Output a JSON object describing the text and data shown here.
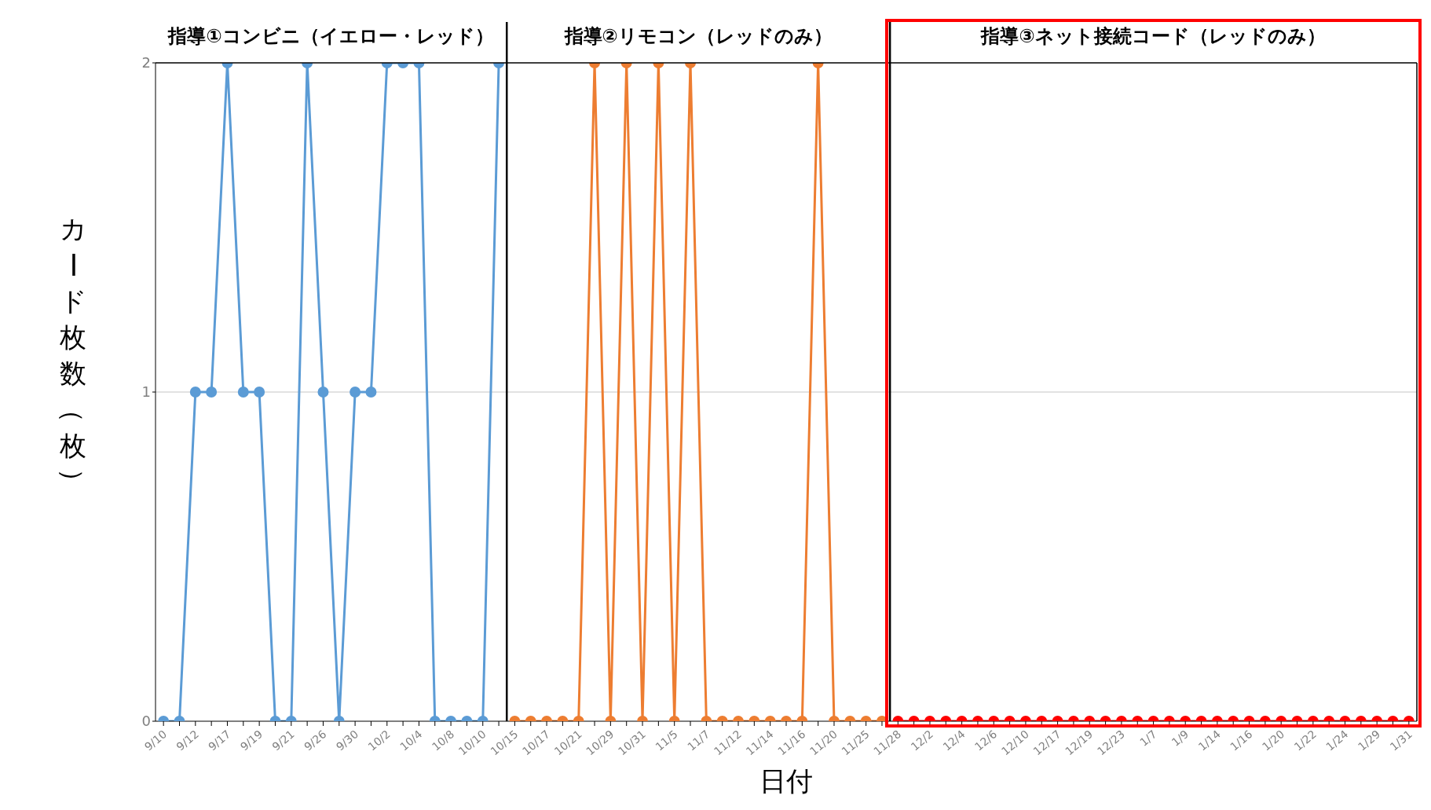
{
  "chart_data": {
    "type": "line",
    "xlabel": "日付",
    "ylabel": "カード枚数（枚）",
    "annotations": [
      "指導①コンビニ（イエロー・レッド）",
      "指導②リモコン（レッドのみ）",
      "指導③ネット接続コード（レッドのみ）"
    ],
    "categories": [
      "9/10",
      null,
      "9/12",
      null,
      "9/17",
      null,
      "9/19",
      null,
      "9/21",
      null,
      "9/26",
      null,
      "9/30",
      null,
      "10/2",
      null,
      "10/4",
      null,
      "10/8",
      null,
      "10/10",
      null,
      "10/15",
      null,
      "10/17",
      null,
      "10/21",
      null,
      "10/29",
      null,
      "10/31",
      null,
      "11/5",
      null,
      "11/7",
      null,
      "11/12",
      null,
      "11/14",
      null,
      "11/16",
      null,
      "11/20",
      null,
      "11/25",
      null,
      "11/28",
      null,
      "12/2",
      null,
      "12/4",
      null,
      "12/6",
      null,
      "12/10",
      null,
      "12/17",
      null,
      "12/19",
      null,
      "12/23",
      null,
      "1/7",
      null,
      "1/9",
      null,
      "1/14",
      null,
      "1/16",
      null,
      "1/20",
      null,
      "1/22",
      null,
      "1/24",
      null,
      "1/29",
      null,
      "1/31"
    ],
    "series": [
      {
        "color": "#5b9bd5",
        "values": [
          0,
          0,
          1,
          1,
          2,
          1,
          1,
          0,
          0,
          2,
          1,
          0,
          1,
          1,
          2,
          2,
          2,
          0,
          0,
          0,
          0,
          2,
          null,
          null,
          null,
          null,
          null,
          null,
          null,
          null,
          null,
          null,
          null,
          null,
          null,
          null,
          null,
          null,
          null,
          null,
          null,
          null,
          null,
          null,
          null,
          null,
          null,
          null,
          null,
          null,
          null,
          null,
          null,
          null,
          null,
          null,
          null,
          null,
          null,
          null,
          null,
          null,
          null,
          null,
          null,
          null,
          null,
          null,
          null,
          null,
          null,
          null,
          null,
          null,
          null,
          null,
          null,
          null,
          null
        ]
      },
      {
        "color": "#ed7d31",
        "values": [
          null,
          null,
          null,
          null,
          null,
          null,
          null,
          null,
          null,
          null,
          null,
          null,
          null,
          null,
          null,
          null,
          null,
          null,
          null,
          null,
          null,
          null,
          0,
          0,
          0,
          0,
          0,
          2,
          0,
          2,
          0,
          2,
          0,
          2,
          0,
          0,
          0,
          0,
          0,
          0,
          0,
          2,
          0,
          0,
          0,
          0,
          null,
          null,
          null,
          null,
          null,
          null,
          null,
          null,
          null,
          null,
          null,
          null,
          null,
          null,
          null,
          null,
          null,
          null,
          null,
          null,
          null,
          null,
          null,
          null,
          null,
          null,
          null,
          null,
          null,
          null,
          null,
          null,
          null
        ]
      },
      {
        "color": "#ff0000",
        "values": [
          null,
          null,
          null,
          null,
          null,
          null,
          null,
          null,
          null,
          null,
          null,
          null,
          null,
          null,
          null,
          null,
          null,
          null,
          null,
          null,
          null,
          null,
          null,
          null,
          null,
          null,
          null,
          null,
          null,
          null,
          null,
          null,
          null,
          null,
          null,
          null,
          null,
          null,
          null,
          null,
          null,
          null,
          null,
          null,
          null,
          null,
          0,
          0,
          0,
          0,
          0,
          0,
          0,
          0,
          0,
          0,
          0,
          0,
          0,
          0,
          0,
          0,
          0,
          0,
          0,
          0,
          0,
          0,
          0,
          0,
          0,
          0,
          0,
          0,
          0,
          0,
          0,
          0,
          0
        ]
      }
    ],
    "ylim": [
      0,
      2
    ],
    "yticks": [
      0,
      1,
      2
    ],
    "ref_lines": [
      {
        "axis": "y",
        "value": 1,
        "color": "#d9d9d9"
      }
    ],
    "legend": false,
    "marker": "circle"
  }
}
